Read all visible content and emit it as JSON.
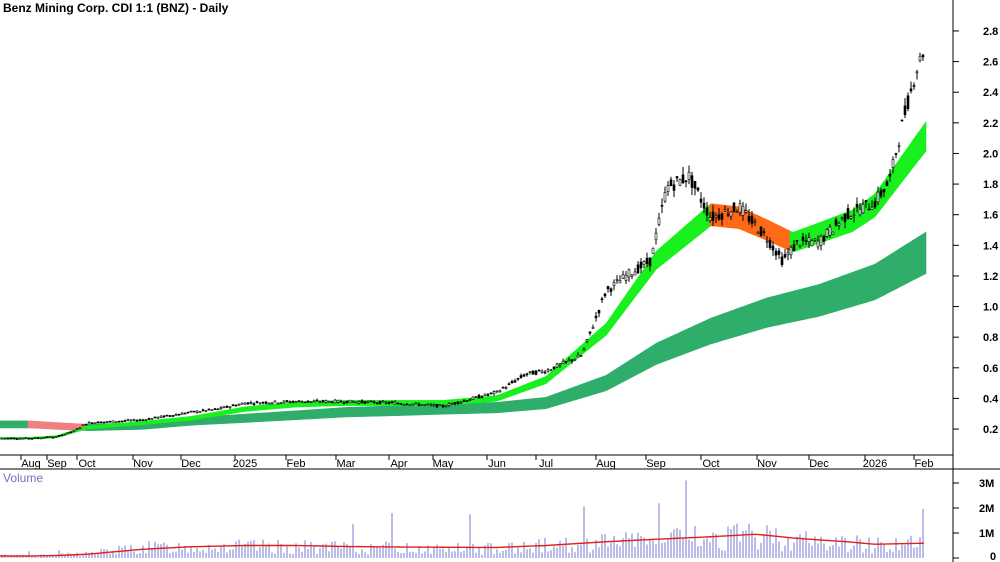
{
  "title": "Benz Mining Corp. CDI 1:1 (BNZ) - Daily",
  "volume_label": "Volume",
  "colors": {
    "candle_body": "#000000",
    "ma_fast_up": "#19f01e",
    "ma_fast_down": "#ff6a1a",
    "ma_slow_up": "#2fae6a",
    "ma_slow_down": "#f08080",
    "volume_bar": "#7a7ad0",
    "volume_ma": "#e0201a",
    "grid": "#c8c8c8"
  },
  "chart_data": {
    "type": "line",
    "subtype": "candlestick-with-ma-ribbons",
    "x_labels": [
      "Aug",
      "Sep",
      "Oct",
      "Nov",
      "Dec",
      "2025",
      "Feb",
      "Mar",
      "Apr",
      "May",
      "Jun",
      "Jul",
      "Aug",
      "Sep",
      "Oct",
      "Nov",
      "Dec",
      "2026",
      "Feb"
    ],
    "price_axis": {
      "ticks": [
        "0.2",
        "0.4",
        "0.6",
        "0.8",
        "1.0",
        "1.2",
        "1.4",
        "1.6",
        "1.8",
        "2.0",
        "2.2",
        "2.4",
        "2.6",
        "2.8"
      ],
      "ylim": [
        0.05,
        2.95
      ]
    },
    "volume_axis": {
      "ticks": [
        "0",
        "1M",
        "2M",
        "3M"
      ],
      "ylim": [
        0,
        3.2
      ]
    },
    "price_close": [
      [
        0,
        0.14
      ],
      [
        1,
        0.15
      ],
      [
        1.6,
        0.19
      ],
      [
        2,
        0.24
      ],
      [
        3,
        0.26
      ],
      [
        4,
        0.31
      ],
      [
        4.5,
        0.33
      ],
      [
        5,
        0.37
      ],
      [
        6,
        0.38
      ],
      [
        7,
        0.38
      ],
      [
        8,
        0.37
      ],
      [
        9,
        0.35
      ],
      [
        10,
        0.44
      ],
      [
        10.6,
        0.56
      ],
      [
        11,
        0.58
      ],
      [
        11.6,
        0.68
      ],
      [
        12,
        1.1
      ],
      [
        12.4,
        1.2
      ],
      [
        12.9,
        1.3
      ],
      [
        13.2,
        1.78
      ],
      [
        13.6,
        1.85
      ],
      [
        14,
        1.58
      ],
      [
        14.5,
        1.65
      ],
      [
        15,
        1.45
      ],
      [
        15.3,
        1.3
      ],
      [
        15.6,
        1.42
      ],
      [
        16,
        1.42
      ],
      [
        16.5,
        1.6
      ],
      [
        17,
        1.68
      ],
      [
        17.3,
        1.82
      ],
      [
        17.6,
        2.25
      ],
      [
        17.9,
        2.6
      ],
      [
        18.2,
        2.82
      ]
    ],
    "ma_fast": [
      [
        0,
        0.14
      ],
      [
        1,
        0.15
      ],
      [
        2,
        0.21
      ],
      [
        3,
        0.24
      ],
      [
        4,
        0.27
      ],
      [
        5,
        0.33
      ],
      [
        6,
        0.36
      ],
      [
        7,
        0.37
      ],
      [
        8,
        0.37
      ],
      [
        9,
        0.37
      ],
      [
        10,
        0.4
      ],
      [
        11,
        0.52
      ],
      [
        12,
        0.85
      ],
      [
        13,
        1.3
      ],
      [
        14,
        1.6
      ],
      [
        14.5,
        1.58
      ],
      [
        15,
        1.5
      ],
      [
        15.5,
        1.42
      ],
      [
        16,
        1.48
      ],
      [
        16.6,
        1.56
      ],
      [
        17,
        1.66
      ],
      [
        17.6,
        1.92
      ],
      [
        18.2,
        2.18
      ]
    ],
    "ma_slow": [
      [
        0,
        0.23
      ],
      [
        1,
        0.22
      ],
      [
        2,
        0.21
      ],
      [
        3,
        0.22
      ],
      [
        4,
        0.25
      ],
      [
        5,
        0.27
      ],
      [
        6,
        0.29
      ],
      [
        7,
        0.31
      ],
      [
        8,
        0.32
      ],
      [
        9,
        0.33
      ],
      [
        10,
        0.34
      ],
      [
        11,
        0.37
      ],
      [
        12,
        0.5
      ],
      [
        13,
        0.69
      ],
      [
        14,
        0.84
      ],
      [
        15,
        0.96
      ],
      [
        16,
        1.04
      ],
      [
        17,
        1.16
      ],
      [
        18.2,
        1.38
      ]
    ],
    "volume_millions": [
      [
        0,
        0.1
      ],
      [
        1,
        0.12
      ],
      [
        2,
        0.2
      ],
      [
        3,
        0.45
      ],
      [
        4,
        0.5
      ],
      [
        5,
        0.5
      ],
      [
        6,
        0.48
      ],
      [
        7,
        0.45
      ],
      [
        8,
        0.44
      ],
      [
        9,
        0.42
      ],
      [
        10,
        0.4
      ],
      [
        11,
        0.55
      ],
      [
        12,
        0.7
      ],
      [
        13,
        0.75
      ],
      [
        14,
        0.9
      ],
      [
        15,
        0.95
      ],
      [
        16,
        0.7
      ],
      [
        17,
        0.6
      ],
      [
        18.2,
        0.65
      ]
    ],
    "volume_ma_millions": [
      [
        0,
        0.08
      ],
      [
        1,
        0.1
      ],
      [
        2,
        0.15
      ],
      [
        3,
        0.35
      ],
      [
        4,
        0.45
      ],
      [
        5,
        0.5
      ],
      [
        6,
        0.5
      ],
      [
        7,
        0.46
      ],
      [
        8,
        0.44
      ],
      [
        9,
        0.43
      ],
      [
        10,
        0.42
      ],
      [
        11,
        0.5
      ],
      [
        12,
        0.65
      ],
      [
        13,
        0.75
      ],
      [
        14,
        0.85
      ],
      [
        14.8,
        0.95
      ],
      [
        15.5,
        0.8
      ],
      [
        16.5,
        0.65
      ],
      [
        17,
        0.55
      ],
      [
        18.2,
        0.6
      ]
    ]
  }
}
